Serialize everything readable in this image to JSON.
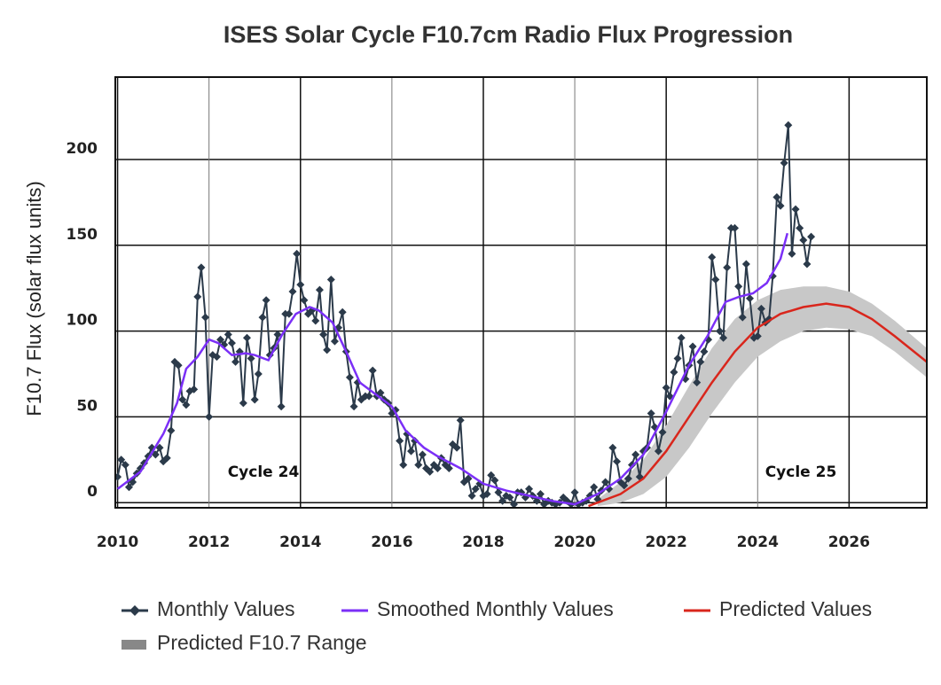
{
  "chart_data": {
    "type": "line",
    "title": "ISES Solar Cycle F10.7cm Radio Flux Progression",
    "ylabel": "F10.7 Flux (solar flux units)",
    "xlim": [
      2009.95,
      2027.7
    ],
    "xticks": [
      2010,
      2012,
      2014,
      2016,
      2018,
      2020,
      2022,
      2024,
      2026
    ],
    "ylim": [
      -3,
      248
    ],
    "yticks": [
      0,
      50,
      100,
      150,
      200
    ],
    "grid": true,
    "annotations": [
      "Cycle 24",
      "Cycle 25"
    ],
    "series": [
      {
        "name": "Monthly Values",
        "color": "#2b3a4a",
        "marker": "diamond",
        "x": [
          2010.0,
          2010.08,
          2010.17,
          2010.25,
          2010.33,
          2010.42,
          2010.5,
          2010.58,
          2010.67,
          2010.75,
          2010.83,
          2010.92,
          2011.0,
          2011.08,
          2011.17,
          2011.25,
          2011.33,
          2011.42,
          2011.5,
          2011.58,
          2011.67,
          2011.75,
          2011.83,
          2011.92,
          2012.0,
          2012.08,
          2012.17,
          2012.25,
          2012.33,
          2012.42,
          2012.5,
          2012.58,
          2012.67,
          2012.75,
          2012.83,
          2012.92,
          2013.0,
          2013.08,
          2013.17,
          2013.25,
          2013.33,
          2013.42,
          2013.5,
          2013.58,
          2013.67,
          2013.75,
          2013.83,
          2013.92,
          2014.0,
          2014.08,
          2014.17,
          2014.25,
          2014.33,
          2014.42,
          2014.5,
          2014.58,
          2014.67,
          2014.75,
          2014.83,
          2014.92,
          2015.0,
          2015.08,
          2015.17,
          2015.25,
          2015.33,
          2015.42,
          2015.5,
          2015.58,
          2015.67,
          2015.75,
          2015.83,
          2015.92,
          2016.0,
          2016.08,
          2016.17,
          2016.25,
          2016.33,
          2016.42,
          2016.5,
          2016.58,
          2016.67,
          2016.75,
          2016.83,
          2016.92,
          2017.0,
          2017.08,
          2017.17,
          2017.25,
          2017.33,
          2017.42,
          2017.5,
          2017.58,
          2017.67,
          2017.75,
          2017.83,
          2017.92,
          2018.0,
          2018.08,
          2018.17,
          2018.25,
          2018.33,
          2018.42,
          2018.5,
          2018.58,
          2018.67,
          2018.75,
          2018.83,
          2018.92,
          2019.0,
          2019.08,
          2019.17,
          2019.25,
          2019.33,
          2019.42,
          2019.5,
          2019.58,
          2019.67,
          2019.75,
          2019.83,
          2019.92,
          2020.0,
          2020.08,
          2020.17,
          2020.25,
          2020.33,
          2020.42,
          2020.5,
          2020.58,
          2020.67,
          2020.75,
          2020.83,
          2020.92,
          2021.0,
          2021.08,
          2021.17,
          2021.25,
          2021.33,
          2021.42,
          2021.5,
          2021.58,
          2021.67,
          2021.75,
          2021.83,
          2021.92,
          2022.0,
          2022.08,
          2022.17,
          2022.25,
          2022.33,
          2022.42,
          2022.5,
          2022.58,
          2022.67,
          2022.75,
          2022.83,
          2022.92,
          2023.0,
          2023.08,
          2023.17,
          2023.25,
          2023.33,
          2023.42,
          2023.5,
          2023.58,
          2023.67,
          2023.75,
          2023.83,
          2023.92,
          2024.0,
          2024.08,
          2024.17,
          2024.25,
          2024.33,
          2024.42,
          2024.5,
          2024.58,
          2024.67,
          2024.75,
          2024.83,
          2024.92,
          2025.0,
          2025.08,
          2025.17
        ],
        "values": [
          15,
          25,
          22,
          9,
          12,
          17,
          20,
          23,
          27,
          32,
          28,
          32,
          24,
          26,
          42,
          82,
          80,
          60,
          57,
          65,
          66,
          120,
          137,
          108,
          50,
          86,
          85,
          95,
          92,
          98,
          93,
          82,
          88,
          58,
          96,
          84,
          60,
          75,
          108,
          118,
          86,
          90,
          98,
          56,
          110,
          110,
          123,
          145,
          127,
          118,
          110,
          112,
          106,
          124,
          98,
          89,
          130,
          94,
          102,
          111,
          88,
          73,
          56,
          70,
          60,
          62,
          62,
          77,
          62,
          64,
          60,
          58,
          52,
          54,
          36,
          22,
          40,
          30,
          36,
          22,
          28,
          20,
          18,
          22,
          20,
          26,
          22,
          20,
          34,
          32,
          48,
          12,
          14,
          4,
          8,
          11,
          4,
          5,
          16,
          13,
          6,
          1,
          4,
          3,
          -1,
          6,
          6,
          3,
          8,
          4,
          1,
          5,
          -1,
          1,
          0,
          -1,
          0,
          3,
          1,
          -1,
          6,
          -1,
          0,
          1,
          4,
          9,
          2,
          7,
          12,
          8,
          32,
          24,
          12,
          10,
          14,
          22,
          28,
          15,
          30,
          32,
          52,
          44,
          30,
          41,
          67,
          62,
          76,
          84,
          96,
          72,
          80,
          91,
          70,
          82,
          88,
          95,
          143,
          130,
          100,
          96,
          137,
          160,
          160,
          126,
          108,
          139,
          119,
          96,
          97,
          113,
          105,
          107,
          132,
          178,
          173,
          198,
          220,
          145,
          171,
          160,
          153,
          139,
          155
        ]
      },
      {
        "name": "Smoothed Monthly Values",
        "color": "#7b2ff7",
        "x": [
          2010.0,
          2010.5,
          2011.0,
          2011.3,
          2011.5,
          2011.75,
          2012.0,
          2012.2,
          2012.5,
          2012.8,
          2013.0,
          2013.3,
          2013.6,
          2013.9,
          2014.2,
          2014.4,
          2014.7,
          2015.0,
          2015.3,
          2015.6,
          2016.0,
          2016.3,
          2016.7,
          2017.0,
          2017.5,
          2018.0,
          2018.5,
          2019.0,
          2019.5,
          2020.0,
          2020.5,
          2021.0,
          2021.5,
          2022.0,
          2022.5,
          2022.9,
          2023.3,
          2023.6,
          2023.9,
          2024.2,
          2024.5,
          2024.65
        ],
        "values": [
          8,
          18,
          40,
          58,
          78,
          85,
          95,
          93,
          86,
          87,
          86,
          83,
          98,
          110,
          114,
          112,
          105,
          88,
          70,
          64,
          56,
          42,
          32,
          27,
          20,
          11,
          7,
          4,
          1,
          -1,
          5,
          14,
          28,
          53,
          80,
          97,
          117,
          120,
          122,
          128,
          142,
          157
        ]
      },
      {
        "name": "Predicted Values",
        "color": "#d9261c",
        "x": [
          2020.3,
          2021.0,
          2021.5,
          2022.0,
          2022.5,
          2023.0,
          2023.5,
          2024.0,
          2024.5,
          2025.0,
          2025.5,
          2026.0,
          2026.5,
          2027.0,
          2027.7
        ],
        "values": [
          -2,
          5,
          14,
          30,
          50,
          70,
          88,
          102,
          110,
          114,
          116,
          114,
          107,
          97,
          82
        ]
      }
    ],
    "band": {
      "name": "Predicted F10.7 Range",
      "color": "#c8c8c8",
      "x": [
        2020.5,
        2021.0,
        2021.5,
        2022.0,
        2022.5,
        2023.0,
        2023.5,
        2024.0,
        2024.5,
        2025.0,
        2025.5,
        2026.0,
        2026.5,
        2027.0,
        2027.7
      ],
      "lower": [
        -2,
        0,
        5,
        15,
        32,
        52,
        70,
        85,
        94,
        100,
        102,
        101,
        97,
        88,
        73
      ],
      "upper": [
        2,
        12,
        25,
        45,
        68,
        90,
        107,
        118,
        124,
        126,
        126,
        123,
        116,
        106,
        90
      ]
    }
  }
}
